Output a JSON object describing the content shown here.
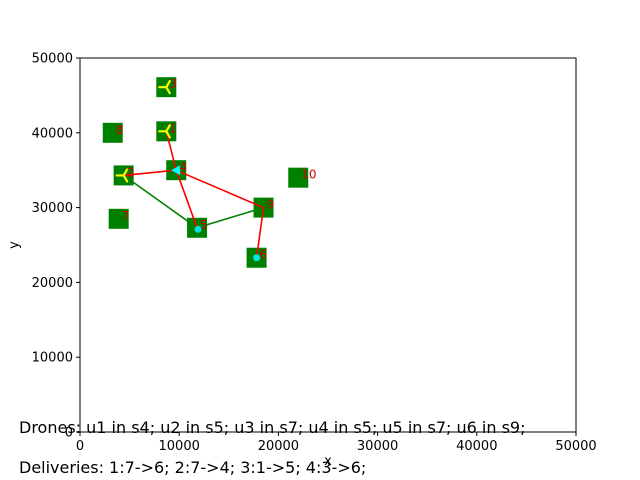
{
  "chart_data": {
    "type": "scatter",
    "xlabel": "x",
    "ylabel": "y",
    "xlim": [
      0,
      50000
    ],
    "ylim": [
      0,
      50000
    ],
    "xticks": [
      "0",
      "10000",
      "20000",
      "30000",
      "40000",
      "50000"
    ],
    "yticks": [
      "0",
      "10000",
      "20000",
      "30000",
      "40000",
      "50000"
    ],
    "grid": false,
    "colors": {
      "station": "#008000",
      "station_label": "#cc0000",
      "red_route": "#ff0000",
      "green_route": "#008000",
      "drone_yellow": "#ffff00",
      "drone_cyan": "#00ffff",
      "dot_cyan": "#00e5e5"
    },
    "stations": [
      {
        "label": "1",
        "x": 8700,
        "y": 40200
      },
      {
        "label": "2",
        "x": 4400,
        "y": 34300
      },
      {
        "label": "3",
        "x": 8700,
        "y": 46100
      },
      {
        "label": "4",
        "x": 9700,
        "y": 35000
      },
      {
        "label": "5",
        "x": 11800,
        "y": 27300
      },
      {
        "label": "6",
        "x": 17800,
        "y": 23300
      },
      {
        "label": "7",
        "x": 3900,
        "y": 28500
      },
      {
        "label": "8",
        "x": 3300,
        "y": 40000
      },
      {
        "label": "9",
        "x": 18500,
        "y": 30000
      },
      {
        "label": "10",
        "x": 22000,
        "y": 34000
      }
    ],
    "red_segments": [
      [
        [
          8700,
          40200
        ],
        [
          9700,
          35000
        ]
      ],
      [
        [
          4400,
          34300
        ],
        [
          9700,
          35000
        ]
      ],
      [
        [
          9700,
          35000
        ],
        [
          11800,
          27300
        ]
      ],
      [
        [
          9700,
          35000
        ],
        [
          18500,
          30000
        ]
      ],
      [
        [
          18500,
          30000
        ],
        [
          17800,
          23300
        ]
      ]
    ],
    "green_segments": [
      [
        [
          4400,
          34300
        ],
        [
          11800,
          27300
        ]
      ],
      [
        [
          11800,
          27300
        ],
        [
          18500,
          30000
        ]
      ]
    ],
    "yellow_drones": [
      {
        "x": 8700,
        "y": 46100
      },
      {
        "x": 8700,
        "y": 40200
      },
      {
        "x": 4400,
        "y": 34300
      }
    ],
    "cyan_drone": {
      "x": 9700,
      "y": 35000
    },
    "cyan_dots": [
      {
        "x": 11900,
        "y": 27100
      },
      {
        "x": 17800,
        "y": 23300
      }
    ]
  },
  "captions": {
    "drones": "Drones: u1 in s4; u2 in s5; u3 in s7; u4 in s5; u5 in s7; u6 in s9;",
    "deliveries": "Deliveries: 1:7->6; 2:7->4; 3:1->5; 4:3->6;"
  }
}
